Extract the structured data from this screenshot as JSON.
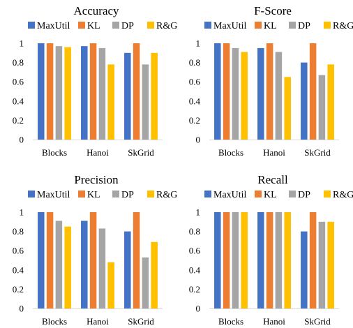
{
  "chart_data": [
    {
      "type": "bar",
      "title": "Accuracy",
      "categories": [
        "Blocks",
        "Hanoi",
        "SkGrid"
      ],
      "ylim": [
        0,
        1
      ],
      "yticks": [
        "0",
        "0.2",
        "0.4",
        "0.6",
        "0.8",
        "1"
      ],
      "legend_position": "top",
      "series": [
        {
          "name": "MaxUtil",
          "color": "#4472C4",
          "values": [
            1.0,
            0.97,
            0.9
          ]
        },
        {
          "name": "KL",
          "color": "#ED7D31",
          "values": [
            1.0,
            1.0,
            1.0
          ]
        },
        {
          "name": "DP",
          "color": "#A5A5A5",
          "values": [
            0.97,
            0.95,
            0.78
          ]
        },
        {
          "name": "R&G",
          "color": "#FFC000",
          "values": [
            0.96,
            0.78,
            0.9
          ]
        }
      ]
    },
    {
      "type": "bar",
      "title": "F-Score",
      "categories": [
        "Blocks",
        "Hanoi",
        "SkGrid"
      ],
      "ylim": [
        0,
        1
      ],
      "yticks": [
        "0",
        "0.2",
        "0.4",
        "0.6",
        "0.8",
        "1"
      ],
      "legend_position": "top",
      "series": [
        {
          "name": "MaxUtil",
          "color": "#4472C4",
          "values": [
            1.0,
            0.95,
            0.8
          ]
        },
        {
          "name": "KL",
          "color": "#ED7D31",
          "values": [
            1.0,
            1.0,
            1.0
          ]
        },
        {
          "name": "DP",
          "color": "#A5A5A5",
          "values": [
            0.95,
            0.91,
            0.67
          ]
        },
        {
          "name": "R&G",
          "color": "#FFC000",
          "values": [
            0.91,
            0.65,
            0.78
          ]
        }
      ]
    },
    {
      "type": "bar",
      "title": "Precision",
      "categories": [
        "Blocks",
        "Hanoi",
        "SkGrid"
      ],
      "ylim": [
        0,
        1
      ],
      "yticks": [
        "0",
        "0.2",
        "0.4",
        "0.6",
        "0.8",
        "1"
      ],
      "legend_position": "top",
      "series": [
        {
          "name": "MaxUtil",
          "color": "#4472C4",
          "values": [
            1.0,
            0.91,
            0.8
          ]
        },
        {
          "name": "KL",
          "color": "#ED7D31",
          "values": [
            1.0,
            1.0,
            1.0
          ]
        },
        {
          "name": "DP",
          "color": "#A5A5A5",
          "values": [
            0.91,
            0.83,
            0.53
          ]
        },
        {
          "name": "R&G",
          "color": "#FFC000",
          "values": [
            0.85,
            0.48,
            0.69
          ]
        }
      ]
    },
    {
      "type": "bar",
      "title": "Recall",
      "categories": [
        "Blocks",
        "Hanoi",
        "SkGrid"
      ],
      "ylim": [
        0,
        1
      ],
      "yticks": [
        "0",
        "0.2",
        "0.4",
        "0.6",
        "0.8",
        "1"
      ],
      "legend_position": "top",
      "series": [
        {
          "name": "MaxUtil",
          "color": "#4472C4",
          "values": [
            1.0,
            1.0,
            0.8
          ]
        },
        {
          "name": "KL",
          "color": "#ED7D31",
          "values": [
            1.0,
            1.0,
            1.0
          ]
        },
        {
          "name": "DP",
          "color": "#A5A5A5",
          "values": [
            1.0,
            1.0,
            0.9
          ]
        },
        {
          "name": "R&G",
          "color": "#FFC000",
          "values": [
            1.0,
            1.0,
            0.9
          ]
        }
      ]
    }
  ]
}
